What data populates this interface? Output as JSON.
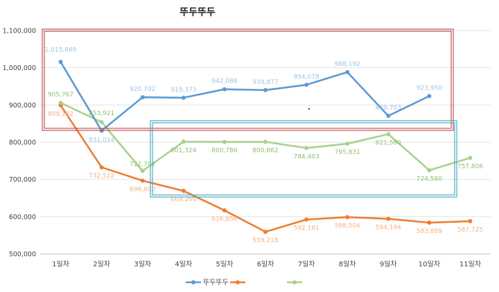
{
  "chart_data": {
    "type": "line",
    "title": "뚜두뚜두",
    "categories": [
      "1일차",
      "2일차",
      "3일차",
      "4일차",
      "5일차",
      "6일차",
      "7일차",
      "8일차",
      "9일차",
      "10일차",
      "11일차"
    ],
    "ylim": [
      500000,
      1100000
    ],
    "yticks": [
      500000,
      600000,
      700000,
      800000,
      900000,
      1000000,
      1100000
    ],
    "ytick_labels": [
      "500,000",
      "600,000",
      "700,000",
      "800,000",
      "900,000",
      "1,000,000",
      "1,100,000"
    ],
    "grid": true,
    "legend_position": "bottom",
    "series": [
      {
        "name": "뚜두뚜두",
        "color": "#5b9bd5",
        "label_color": "#9dc3e6",
        "values": [
          1015669,
          831024,
          920702,
          919373,
          942088,
          939877,
          954078,
          988192,
          870703,
          923950,
          null
        ],
        "labels": [
          "1,015,669",
          "831,024",
          "920,702",
          "919,373",
          "942,088",
          "939,877",
          "954,078",
          "988,192",
          "870,703",
          "923,950",
          ""
        ]
      },
      {
        "name": "",
        "color": "#ed7d31",
        "label_color": "#f4b183",
        "values": [
          899162,
          732512,
          696600,
          669266,
          616856,
          559218,
          592181,
          598504,
          594194,
          583889,
          587725
        ],
        "labels": [
          "899,162",
          "732,512",
          "696,600",
          "669,266",
          "616,856",
          "559,218",
          "592,181",
          "598,504",
          "594,194",
          "583,889",
          "587,725"
        ]
      },
      {
        "name": "",
        "color": "#a9d18e",
        "label_color": "#8fbf6a",
        "values": [
          905767,
          853921,
          722702,
          801324,
          800786,
          800862,
          784403,
          795831,
          821560,
          724580,
          757806
        ],
        "labels": [
          "905,767",
          "853,921",
          "722,702",
          "801,324",
          "800,786",
          "800,862",
          "784,403",
          "795,831",
          "821,560",
          "724,580",
          "757,806"
        ]
      }
    ],
    "annotations": [
      {
        "kind": "box",
        "color": "#c0504d"
      },
      {
        "kind": "box",
        "color": "#4bacc6"
      }
    ]
  }
}
